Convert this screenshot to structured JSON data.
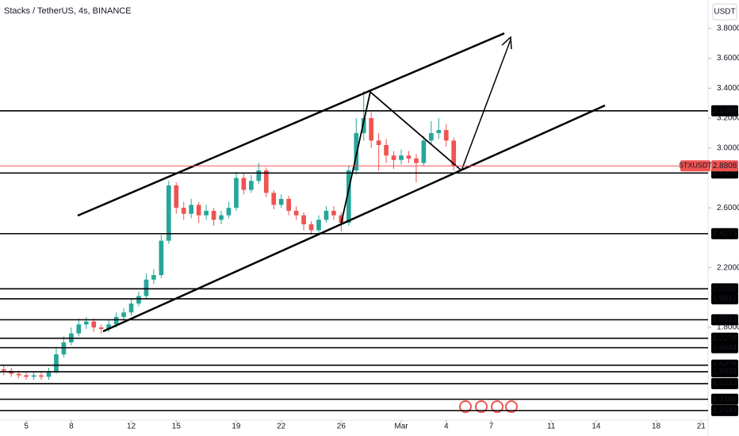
{
  "chart_data": {
    "type": "candlestick",
    "title": "Stacks / TetherUS, 4s, BINANCE",
    "currency": "USDT",
    "symbol": "STXUSDT",
    "last_price": 2.8808,
    "up_color": "#26a69a",
    "down_color": "#ef5350",
    "last_color": "#ef5350",
    "xlim": [
      -1.75,
      45.3
    ],
    "ylim": [
      1.18,
      3.99
    ],
    "xticks": [
      {
        "value": 0,
        "label": "5"
      },
      {
        "value": 3,
        "label": "8"
      },
      {
        "value": 7,
        "label": "12"
      },
      {
        "value": 10,
        "label": "15"
      },
      {
        "value": 14,
        "label": "19"
      },
      {
        "value": 17,
        "label": "22"
      },
      {
        "value": 21,
        "label": "26"
      },
      {
        "value": 25,
        "label": "Mar"
      },
      {
        "value": 28,
        "label": "4"
      },
      {
        "value": 31,
        "label": "7"
      },
      {
        "value": 35,
        "label": "11"
      },
      {
        "value": 38,
        "label": "14"
      },
      {
        "value": 42,
        "label": "18"
      },
      {
        "value": 45,
        "label": "21"
      }
    ],
    "yticks": [
      {
        "value": 3.8,
        "label": "3.8000"
      },
      {
        "value": 3.6,
        "label": "3.6000"
      },
      {
        "value": 3.4,
        "label": "3.4000"
      },
      {
        "value": 3.2,
        "label": "3.2000"
      },
      {
        "value": 3.0,
        "label": "3.0000"
      },
      {
        "value": 2.6,
        "label": "2.6000"
      },
      {
        "value": 2.2,
        "label": "2.2000"
      },
      {
        "value": 1.8,
        "label": "1.8000"
      }
    ],
    "levels": [
      3.2488,
      2.8328,
      2.4273,
      2.0582,
      1.9917,
      1.8513,
      1.7278,
      1.6644,
      1.5475,
      1.5039,
      1.4243,
      1.3198,
      1.2443
    ],
    "x": [
      -1.5,
      -1,
      -0.5,
      0,
      0.5,
      1,
      1.5,
      2,
      2.5,
      3,
      3.5,
      4,
      4.5,
      5,
      5.5,
      6,
      6.5,
      7,
      7.5,
      8,
      8.5,
      9,
      9.5,
      10,
      10.5,
      11,
      11.5,
      12,
      12.5,
      13,
      13.5,
      14,
      14.5,
      15,
      15.5,
      16,
      16.5,
      17,
      17.5,
      18,
      18.5,
      19,
      19.5,
      20,
      20.5,
      21,
      21.5,
      22,
      22.5,
      23,
      23.5,
      24,
      24.5,
      25,
      25.5,
      26,
      26.5,
      27,
      27.5,
      28,
      28.5
    ],
    "open": [
      1.52,
      1.51,
      1.49,
      1.48,
      1.47,
      1.48,
      1.47,
      1.5,
      1.62,
      1.7,
      1.76,
      1.82,
      1.84,
      1.8,
      1.79,
      1.82,
      1.87,
      1.9,
      1.96,
      2.01,
      2.12,
      2.15,
      2.38,
      2.75,
      2.6,
      2.56,
      2.62,
      2.55,
      2.58,
      2.52,
      2.55,
      2.6,
      2.8,
      2.72,
      2.78,
      2.85,
      2.7,
      2.62,
      2.66,
      2.58,
      2.55,
      2.49,
      2.45,
      2.52,
      2.58,
      2.55,
      2.5,
      2.85,
      3.1,
      3.2,
      3.05,
      3.02,
      2.95,
      2.92,
      2.95,
      2.93,
      2.9,
      3.05,
      3.1,
      3.12,
      3.05
    ],
    "high": [
      1.55,
      1.53,
      1.51,
      1.5,
      1.5,
      1.5,
      1.53,
      1.66,
      1.74,
      1.8,
      1.86,
      1.87,
      1.86,
      1.82,
      1.85,
      1.9,
      1.93,
      1.99,
      2.04,
      2.16,
      2.19,
      2.42,
      2.78,
      2.77,
      2.64,
      2.66,
      2.64,
      2.62,
      2.6,
      2.58,
      2.64,
      2.84,
      2.83,
      2.82,
      2.9,
      2.87,
      2.72,
      2.69,
      2.68,
      2.61,
      2.57,
      2.51,
      2.55,
      2.61,
      2.61,
      2.57,
      2.88,
      3.2,
      3.38,
      3.24,
      3.1,
      3.06,
      2.98,
      2.99,
      2.98,
      2.96,
      3.08,
      3.18,
      3.2,
      3.16,
      3.07
    ],
    "low": [
      1.48,
      1.47,
      1.46,
      1.45,
      1.45,
      1.45,
      1.45,
      1.49,
      1.6,
      1.68,
      1.74,
      1.79,
      1.77,
      1.76,
      1.77,
      1.8,
      1.85,
      1.88,
      1.94,
      1.99,
      2.09,
      2.13,
      2.36,
      2.56,
      2.52,
      2.53,
      2.5,
      2.52,
      2.48,
      2.49,
      2.53,
      2.58,
      2.69,
      2.7,
      2.76,
      2.67,
      2.59,
      2.6,
      2.55,
      2.52,
      2.45,
      2.42,
      2.43,
      2.5,
      2.52,
      2.44,
      2.48,
      2.82,
      3.05,
      3.0,
      2.85,
      2.9,
      2.86,
      2.89,
      2.9,
      2.77,
      2.88,
      3.02,
      3.06,
      3.01,
      2.85
    ],
    "close": [
      1.51,
      1.49,
      1.48,
      1.47,
      1.48,
      1.47,
      1.5,
      1.62,
      1.7,
      1.76,
      1.82,
      1.84,
      1.8,
      1.79,
      1.82,
      1.87,
      1.9,
      1.96,
      2.01,
      2.12,
      2.15,
      2.38,
      2.75,
      2.6,
      2.56,
      2.62,
      2.55,
      2.58,
      2.52,
      2.55,
      2.6,
      2.8,
      2.72,
      2.78,
      2.85,
      2.7,
      2.62,
      2.66,
      2.58,
      2.55,
      2.49,
      2.45,
      2.52,
      2.58,
      2.55,
      2.5,
      2.85,
      3.1,
      3.2,
      3.05,
      3.02,
      2.95,
      2.92,
      2.95,
      2.93,
      2.9,
      3.05,
      3.1,
      3.12,
      3.05,
      2.88
    ]
  }
}
